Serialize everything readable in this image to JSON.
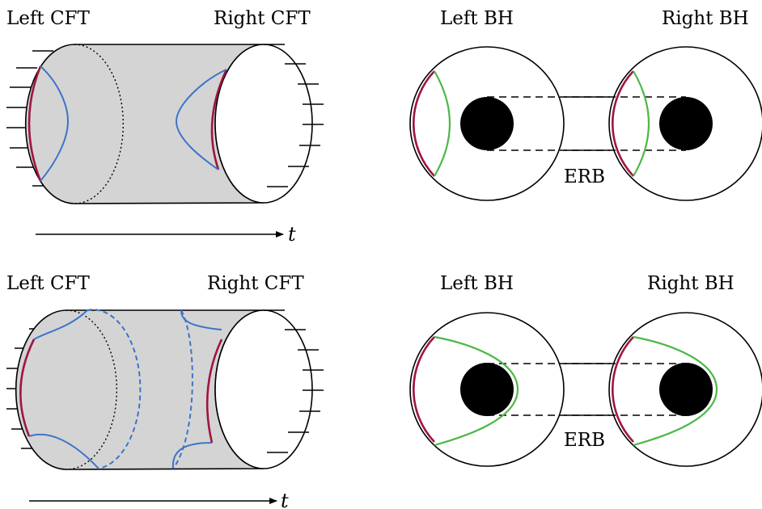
{
  "panels": [
    {
      "left_label": "Left CFT",
      "right_label": "Right CFT",
      "time_label": "t"
    },
    {
      "left_label": "Left BH",
      "right_label": "Right BH",
      "bridge_label": "ERB"
    },
    {
      "left_label": "Left CFT",
      "right_label": "Right CFT",
      "time_label": "t"
    },
    {
      "left_label": "Left BH",
      "right_label": "Right BH",
      "bridge_label": "ERB"
    }
  ],
  "colors": {
    "cylinder_fill": "#d4d4d4",
    "outline": "#000000",
    "boundary_region": "#a0153e",
    "hrt_surface": "#3b75c9",
    "entanglement_wedge": "#4cb848",
    "black_hole": "#000000"
  }
}
